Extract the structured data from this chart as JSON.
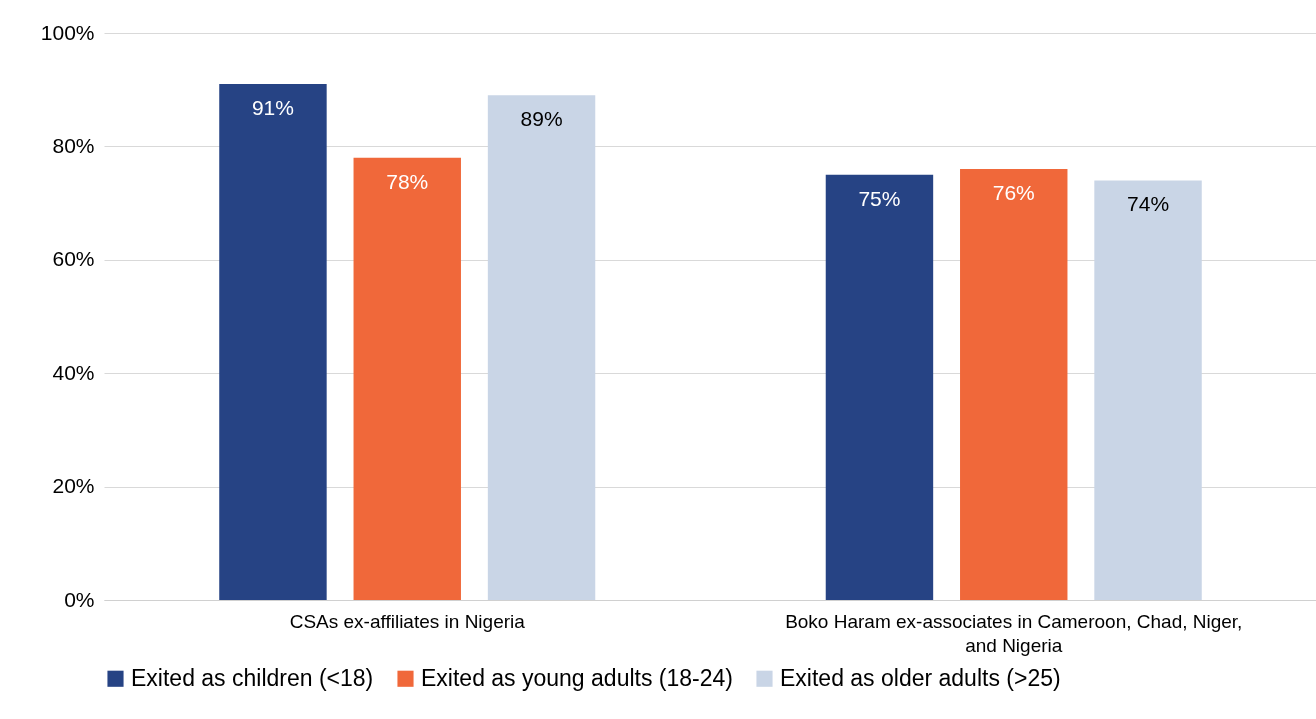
{
  "chart_data": {
    "type": "bar",
    "categories": [
      "CSAs ex-affiliates in Nigeria",
      "Boko Haram ex-associates in Cameroon, Chad, Niger, and Nigeria"
    ],
    "series": [
      {
        "name": "Exited as children (<18)",
        "color": "#264384",
        "values": [
          91,
          75
        ],
        "value_labels": [
          "91%",
          "75%"
        ]
      },
      {
        "name": "Exited as young adults (18-24)",
        "color": "#f0683a",
        "values": [
          78,
          76
        ],
        "value_labels": [
          "78%",
          "76%"
        ]
      },
      {
        "name": "Exited as older adults (>25)",
        "color": "#c9d5e6",
        "values": [
          89,
          74
        ],
        "value_labels": [
          "89%",
          "74%"
        ]
      }
    ],
    "ylim": [
      0,
      100
    ],
    "yticks": [
      {
        "value": 0,
        "label": "0%"
      },
      {
        "value": 20,
        "label": "20%"
      },
      {
        "value": 40,
        "label": "40%"
      },
      {
        "value": 60,
        "label": "60%"
      },
      {
        "value": 80,
        "label": "80%"
      },
      {
        "value": 100,
        "label": "100%"
      }
    ],
    "grid": "y",
    "legend": "bottom"
  }
}
